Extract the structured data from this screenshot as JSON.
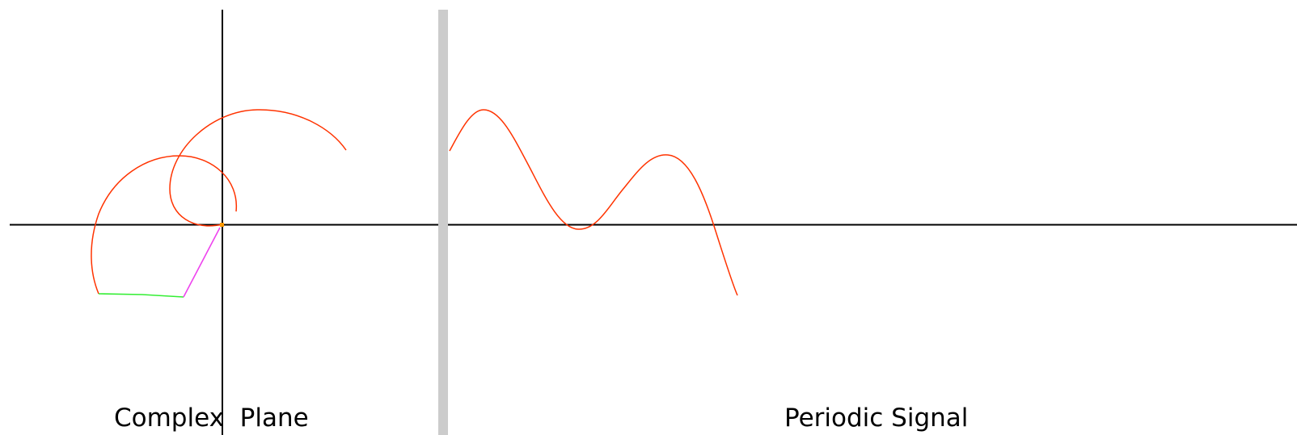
{
  "panels": {
    "left": {
      "caption": "Complex  Plane"
    },
    "right": {
      "caption": "Periodic Signal"
    }
  },
  "colors": {
    "background": "#ffffff",
    "axis": "#000000",
    "divider": "#cccccc",
    "trace": "#ff3300",
    "phasor_primary": "#33ee33",
    "phasor_secondary": "#ee44ee",
    "origin_marker": "#ff9900",
    "text": "#000000"
  }
}
